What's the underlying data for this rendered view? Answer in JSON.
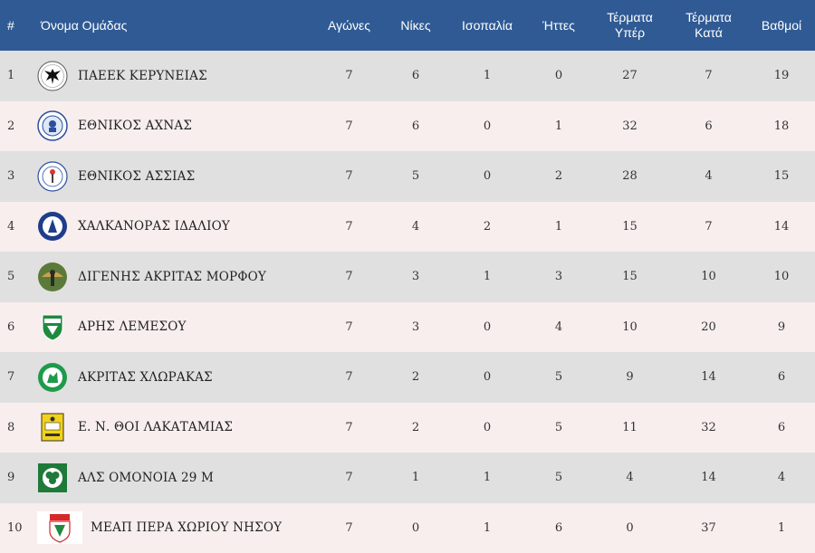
{
  "table": {
    "headers": {
      "pos": "#",
      "team": "Όνομα Ομάδας",
      "played": "Αγώνες",
      "wins": "Νίκες",
      "draws": "Ισοπαλία",
      "losses": "Ήττες",
      "goals_for_1": "Τέρματα",
      "goals_for_2": "Υπέρ",
      "goals_against_1": "Τέρματα",
      "goals_against_2": "Κατά",
      "points": "Βαθμοί"
    },
    "rows": [
      {
        "pos": "1",
        "team": "ΠΑΕΕΚ ΚΕΡΥΝΕΙΑΣ",
        "logo_icon": "paeek-eagle-crest-icon",
        "played": "7",
        "wins": "6",
        "draws": "1",
        "losses": "0",
        "gf": "27",
        "ga": "7",
        "pts": "19"
      },
      {
        "pos": "2",
        "team": "ΕΘΝΙΚΟΣ ΑΧΝΑΣ",
        "logo_icon": "ethnikos-achnas-crest-icon",
        "played": "7",
        "wins": "6",
        "draws": "0",
        "losses": "1",
        "gf": "32",
        "ga": "6",
        "pts": "18"
      },
      {
        "pos": "3",
        "team": "ΕΘΝΙΚΟΣ ΑΣΣΙΑΣ",
        "logo_icon": "ethnikos-assias-crest-icon",
        "played": "7",
        "wins": "5",
        "draws": "0",
        "losses": "2",
        "gf": "28",
        "ga": "4",
        "pts": "15"
      },
      {
        "pos": "4",
        "team": "ΧΑΛΚΑΝΟΡΑΣ ΙΔΑΛΙΟΥ",
        "logo_icon": "chalkanoras-crest-icon",
        "played": "7",
        "wins": "4",
        "draws": "2",
        "losses": "1",
        "gf": "15",
        "ga": "7",
        "pts": "14"
      },
      {
        "pos": "5",
        "team": "ΔΙΓΕΝΗΣ ΑΚΡΙΤΑΣ ΜΟΡΦΟΥ",
        "logo_icon": "digenis-crest-icon",
        "played": "7",
        "wins": "3",
        "draws": "1",
        "losses": "3",
        "gf": "15",
        "ga": "10",
        "pts": "10"
      },
      {
        "pos": "6",
        "team": "ΑΡΗΣ ΛΕΜΕΣΟΥ",
        "logo_icon": "aris-limassol-crest-icon",
        "played": "7",
        "wins": "3",
        "draws": "0",
        "losses": "4",
        "gf": "10",
        "ga": "20",
        "pts": "9"
      },
      {
        "pos": "7",
        "team": "ΑΚΡΙΤΑΣ ΧΛΩΡΑΚΑΣ",
        "logo_icon": "akritas-chlorakas-crest-icon",
        "played": "7",
        "wins": "2",
        "draws": "0",
        "losses": "5",
        "gf": "9",
        "ga": "14",
        "pts": "6"
      },
      {
        "pos": "8",
        "team": "Ε. Ν. ΘΟΙ ΛΑΚΑΤΑΜΙΑΣ",
        "logo_icon": "thoi-lakatamias-crest-icon",
        "played": "7",
        "wins": "2",
        "draws": "0",
        "losses": "5",
        "gf": "11",
        "ga": "32",
        "pts": "6"
      },
      {
        "pos": "9",
        "team": "ΑΛΣ ΟΜΟΝΟΙΑ 29 Μ",
        "logo_icon": "omonoia-29m-crest-icon",
        "played": "7",
        "wins": "1",
        "draws": "1",
        "losses": "5",
        "gf": "4",
        "ga": "14",
        "pts": "4"
      },
      {
        "pos": "10",
        "team": "ΜΕΑΠ ΠΕΡΑ ΧΩΡΙΟΥ ΝΗΣΟΥ",
        "logo_icon": "meap-crest-icon",
        "played": "7",
        "wins": "0",
        "draws": "1",
        "losses": "6",
        "gf": "0",
        "ga": "37",
        "pts": "1"
      }
    ]
  },
  "colors": {
    "header_bg": "#2f5a94",
    "row_odd": "#e0e0e0",
    "row_even": "#f8eeee"
  }
}
